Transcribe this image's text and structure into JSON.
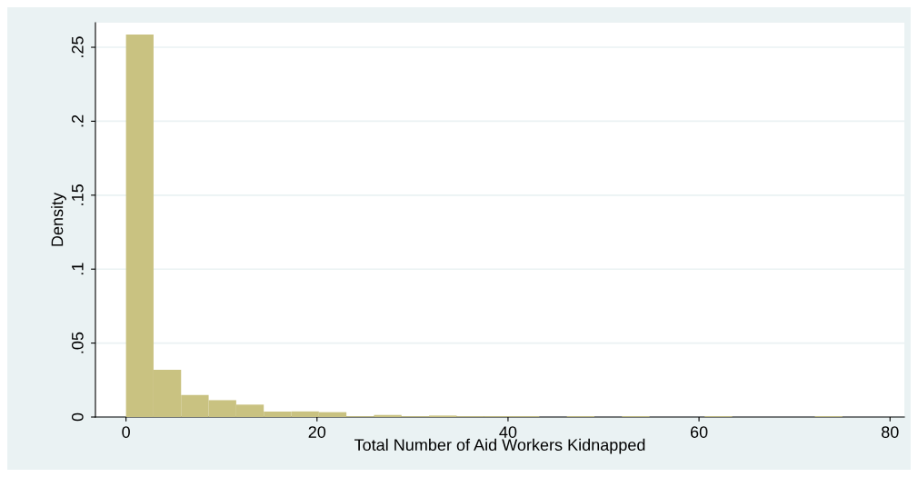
{
  "chart_data": {
    "type": "histogram",
    "xlabel": "Total Number of Aid Workers Kidnapped",
    "ylabel": "Density",
    "bins": [
      0,
      2.885,
      5.77,
      8.655,
      11.54,
      14.425,
      17.31,
      20.195,
      23.08,
      25.965,
      28.85,
      31.735,
      34.62,
      37.505,
      40.39,
      43.275,
      46.16,
      49.045,
      51.93,
      54.815,
      57.7,
      60.585,
      63.47,
      66.355,
      69.24,
      72.125,
      75.01
    ],
    "values": [
      0.2586,
      0.0319,
      0.0149,
      0.0114,
      0.0084,
      0.0037,
      0.0038,
      0.0033,
      0.0005,
      0.0014,
      0.0005,
      0.001,
      0.0005,
      0.0005,
      0.0005,
      0,
      0.0005,
      0,
      0.0005,
      0,
      0,
      0.0005,
      0,
      0,
      0,
      0.0005
    ],
    "color": "#c9c281",
    "xlim": [
      -3.2,
      81.5
    ],
    "ylim": [
      0,
      0.2666
    ],
    "xticks": [
      0,
      20,
      40,
      60,
      80
    ],
    "yticks": [
      {
        "value": 0,
        "label": "0"
      },
      {
        "value": 0.05,
        "label": ".05"
      },
      {
        "value": 0.1,
        "label": ".1"
      },
      {
        "value": 0.15,
        "label": ".15"
      },
      {
        "value": 0.2,
        "label": ".2"
      },
      {
        "value": 0.25,
        "label": ".25"
      }
    ],
    "grid": "y"
  }
}
